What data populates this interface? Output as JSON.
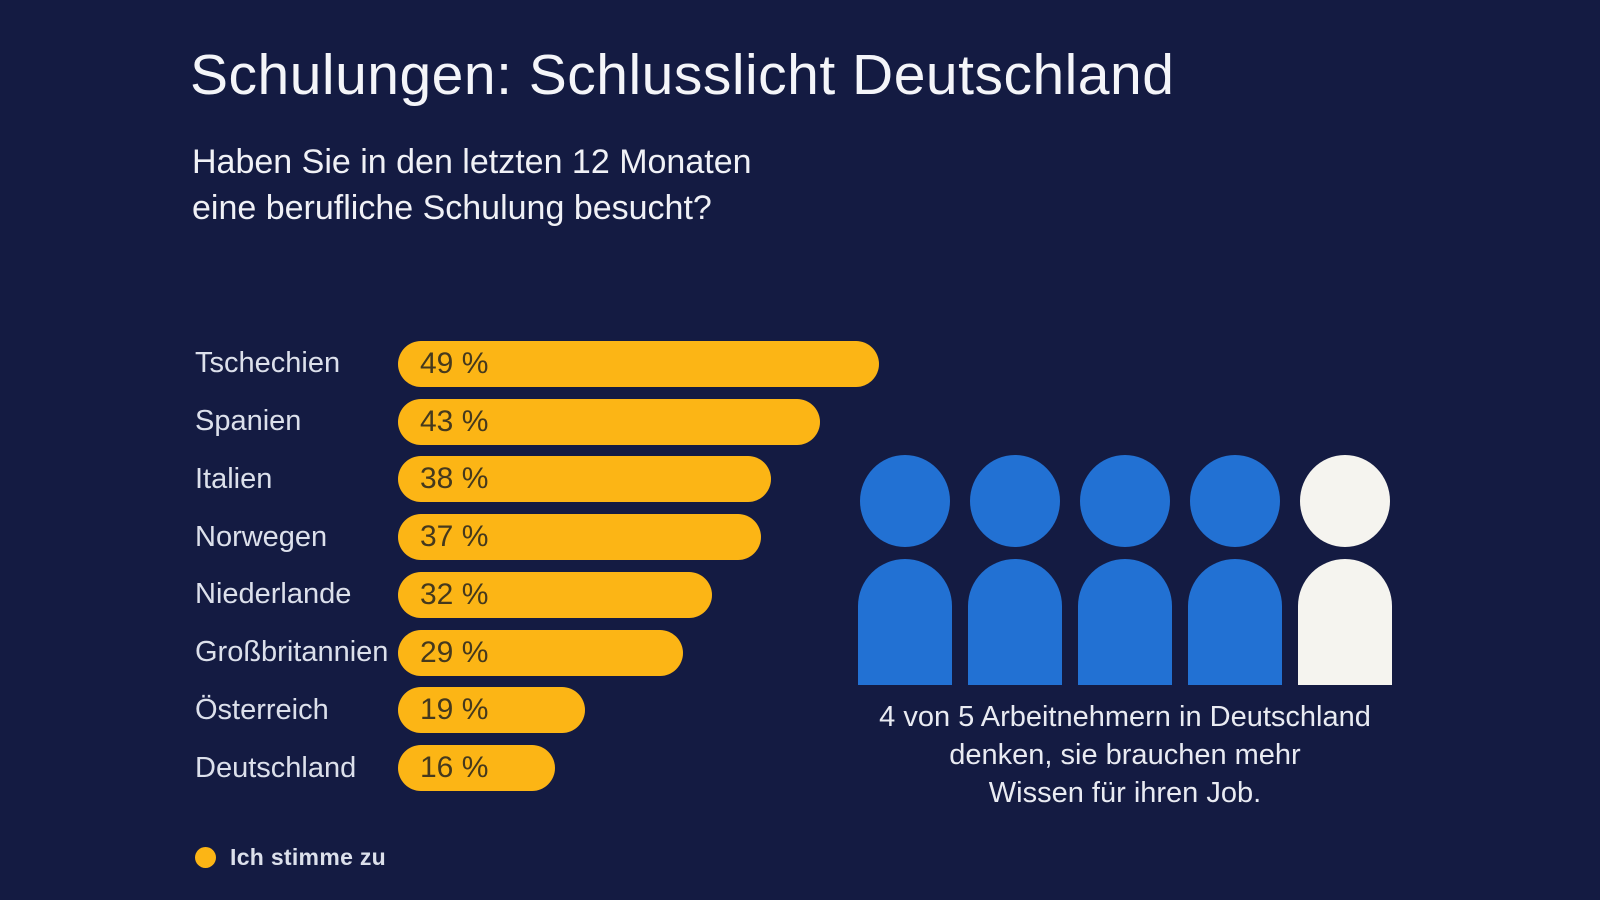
{
  "title": "Schulungen: Schlusslicht Deutschland",
  "subtitle_lines": [
    "Haben Sie in den letzten 12 Monaten",
    "eine berufliche Schulung besucht?"
  ],
  "chart_data": {
    "type": "bar",
    "orientation": "horizontal",
    "title": "Schulungen: Schlusslicht Deutschland",
    "question": "Haben Sie in den letzten 12 Monaten eine berufliche Schulung besucht?",
    "categories": [
      "Tschechien",
      "Spanien",
      "Italien",
      "Norwegen",
      "Niederlande",
      "Großbritannien",
      "Österreich",
      "Deutschland"
    ],
    "values": [
      49,
      43,
      38,
      37,
      32,
      29,
      19,
      16
    ],
    "value_suffix": " %",
    "xlim": [
      0,
      50
    ],
    "grid": false,
    "legend_position": "bottom-left",
    "legend": [
      {
        "label": "Ich stimme zu",
        "color": "#FCB515"
      }
    ],
    "bar_color": "#FCB515",
    "bar_label_color": "#45391D"
  },
  "pictogram": {
    "highlighted_count": 4,
    "total_count": 5,
    "active_color": "#2271D3",
    "inactive_color": "#F5F4EF",
    "caption_lines": [
      "4 von 5 Arbeitnehmern in Deutschland",
      "denken, sie brauchen mehr",
      "Wissen für ihren Job."
    ]
  },
  "colors": {
    "background": "#141B42",
    "title_text": "#F4F5F9",
    "label_text": "#DCE0EB",
    "caption_text": "#E9EBF2"
  }
}
